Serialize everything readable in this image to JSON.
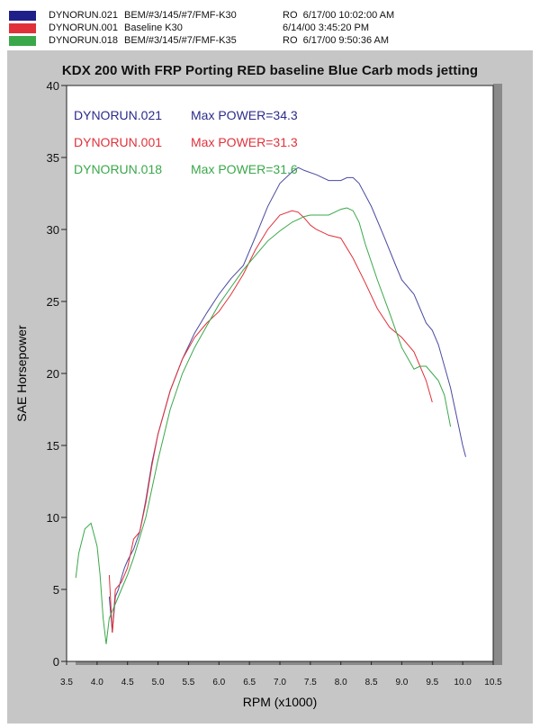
{
  "legend": [
    {
      "run": "DYNORUN.021",
      "desc": "BEM/#3/145/#7/FMF-K30",
      "info": "RO  6/17/00 10:02:00 AM",
      "color": "#1f1f8a"
    },
    {
      "run": "DYNORUN.001",
      "desc": "Baseline   K30",
      "info": "6/14/00 3:45:20 PM",
      "color": "#e0313a"
    },
    {
      "run": "DYNORUN.018",
      "desc": "BEM/#3/145/#7/FMF-K35",
      "info": "RO  6/17/00 9:50:36 AM",
      "color": "#3aa84a"
    }
  ],
  "chart_data": {
    "type": "line",
    "title": "KDX 200 With FRP   Porting  RED baseline Blue Carb mods jetting",
    "xlabel": "RPM (x1000)",
    "ylabel": "SAE Horsepower",
    "xlim": [
      3.5,
      10.5
    ],
    "ylim": [
      0,
      40
    ],
    "xticks": [
      "3.5",
      "4.0",
      "4.5",
      "5.0",
      "5.5",
      "6.0",
      "6.5",
      "7.0",
      "7.5",
      "8.0",
      "8.5",
      "9.0",
      "9.5",
      "10.0",
      "10.5"
    ],
    "yticks": [
      "0",
      "5",
      "10",
      "15",
      "20",
      "25",
      "30",
      "35",
      "40"
    ],
    "grid": false,
    "annotations": [
      {
        "run": "DYNORUN.021",
        "text": "Max POWER=34.3",
        "color": "#2b2b8c"
      },
      {
        "run": "DYNORUN.001",
        "text": "Max POWER=31.3",
        "color": "#e0313a"
      },
      {
        "run": "DYNORUN.018",
        "text": "Max POWER=31.6",
        "color": "#3aa84a"
      }
    ],
    "series": [
      {
        "name": "DYNORUN.021",
        "color": "#4a4aa0",
        "x": [
          4.2,
          4.25,
          4.3,
          4.35,
          4.4,
          4.45,
          4.5,
          4.6,
          4.7,
          4.8,
          4.9,
          5.0,
          5.2,
          5.4,
          5.6,
          5.8,
          6.0,
          6.2,
          6.4,
          6.6,
          6.8,
          7.0,
          7.2,
          7.3,
          7.4,
          7.6,
          7.8,
          8.0,
          8.1,
          8.2,
          8.3,
          8.5,
          8.7,
          8.9,
          9.0,
          9.2,
          9.4,
          9.5,
          9.6,
          9.8,
          9.9,
          10.0,
          10.05
        ],
        "y": [
          4.5,
          2.0,
          4.5,
          5.0,
          5.8,
          6.5,
          7.0,
          7.8,
          9.0,
          11.2,
          13.8,
          15.8,
          18.8,
          21.0,
          22.8,
          24.2,
          25.5,
          26.6,
          27.5,
          29.5,
          31.6,
          33.2,
          34.0,
          34.3,
          34.1,
          33.8,
          33.4,
          33.4,
          33.6,
          33.6,
          33.2,
          31.6,
          29.6,
          27.5,
          26.5,
          25.5,
          23.5,
          23.0,
          22.0,
          19.0,
          17.0,
          15.0,
          14.2
        ]
      },
      {
        "name": "DYNORUN.001",
        "color": "#e0313a",
        "x": [
          4.2,
          4.25,
          4.3,
          4.4,
          4.5,
          4.6,
          4.7,
          4.8,
          4.9,
          5.0,
          5.2,
          5.4,
          5.6,
          5.8,
          6.0,
          6.2,
          6.4,
          6.6,
          6.8,
          7.0,
          7.2,
          7.3,
          7.4,
          7.5,
          7.6,
          7.8,
          8.0,
          8.2,
          8.4,
          8.6,
          8.8,
          9.0,
          9.2,
          9.4,
          9.5
        ],
        "y": [
          6.0,
          2.0,
          5.0,
          5.5,
          6.5,
          8.5,
          9.0,
          11.0,
          13.6,
          15.8,
          18.8,
          21.0,
          22.5,
          23.5,
          24.3,
          25.5,
          26.9,
          28.6,
          30.0,
          31.0,
          31.3,
          31.2,
          30.8,
          30.3,
          30.0,
          29.6,
          29.4,
          28.0,
          26.3,
          24.5,
          23.2,
          22.5,
          21.5,
          19.5,
          18.0
        ]
      },
      {
        "name": "DYNORUN.018",
        "color": "#3aa84a",
        "x": [
          3.65,
          3.7,
          3.8,
          3.9,
          4.0,
          4.05,
          4.1,
          4.15,
          4.2,
          4.3,
          4.4,
          4.5,
          4.6,
          4.8,
          5.0,
          5.2,
          5.4,
          5.6,
          5.8,
          6.0,
          6.2,
          6.4,
          6.6,
          6.8,
          7.0,
          7.2,
          7.4,
          7.5,
          7.6,
          7.8,
          8.0,
          8.1,
          8.2,
          8.3,
          8.4,
          8.6,
          8.8,
          9.0,
          9.2,
          9.3,
          9.4,
          9.5,
          9.6,
          9.7,
          9.8
        ],
        "y": [
          5.8,
          7.5,
          9.2,
          9.6,
          8.0,
          6.0,
          3.0,
          1.2,
          3.0,
          4.0,
          5.0,
          6.0,
          7.2,
          10.0,
          14.0,
          17.5,
          20.0,
          21.8,
          23.3,
          24.8,
          26.0,
          27.2,
          28.2,
          29.2,
          29.9,
          30.5,
          30.9,
          31.0,
          31.0,
          31.0,
          31.4,
          31.5,
          31.3,
          30.5,
          29.0,
          26.5,
          24.2,
          21.8,
          20.3,
          20.5,
          20.5,
          20.0,
          19.5,
          18.5,
          16.3
        ]
      }
    ]
  }
}
